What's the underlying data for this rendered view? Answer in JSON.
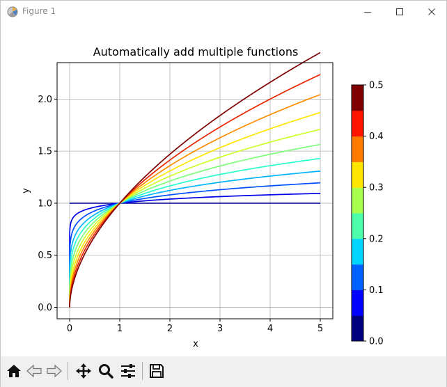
{
  "window": {
    "title": "Figure 1",
    "icon": "matplotlib-figure-icon",
    "controls": [
      "minimize-icon",
      "maximize-icon",
      "close-icon"
    ]
  },
  "toolbar": {
    "tools": [
      {
        "name": "home-button",
        "icon": "home-icon"
      },
      {
        "name": "back-button",
        "icon": "back-arrow-icon"
      },
      {
        "name": "forward-button",
        "icon": "forward-arrow-icon"
      },
      {
        "name": "pan-button",
        "icon": "move-icon"
      },
      {
        "name": "zoom-button",
        "icon": "zoom-icon"
      },
      {
        "name": "configure-subplots-button",
        "icon": "sliders-icon"
      },
      {
        "name": "save-button",
        "icon": "save-icon"
      }
    ]
  },
  "chart_data": {
    "type": "line",
    "title": "Automatically add multiple functions",
    "xlabel": "x",
    "ylabel": "y",
    "xlim": [
      -0.25,
      5.25
    ],
    "ylim": [
      -0.11,
      2.35
    ],
    "xticks": [
      0,
      1,
      2,
      3,
      4,
      5
    ],
    "yticks": [
      0.0,
      0.5,
      1.0,
      1.5,
      2.0
    ],
    "xtick_labels": [
      "0",
      "1",
      "2",
      "3",
      "4",
      "5"
    ],
    "ytick_labels": [
      "0.0",
      "0.5",
      "1.0",
      "1.5",
      "2.0"
    ],
    "grid": true,
    "function": "y = x^p",
    "x_range": [
      0,
      5
    ],
    "series": [
      {
        "p": 0.0,
        "color": "#00008f"
      },
      {
        "p": 0.056,
        "color": "#0000ea"
      },
      {
        "p": 0.111,
        "color": "#0050ff"
      },
      {
        "p": 0.167,
        "color": "#00b4ff"
      },
      {
        "p": 0.222,
        "color": "#29ffce"
      },
      {
        "p": 0.278,
        "color": "#7dff7a"
      },
      {
        "p": 0.333,
        "color": "#ceff29"
      },
      {
        "p": 0.389,
        "color": "#ffe500"
      },
      {
        "p": 0.444,
        "color": "#ff8d00"
      },
      {
        "p": 0.5,
        "color": "#ea2600"
      },
      {
        "p": 0.556,
        "color": "#7f0000"
      }
    ],
    "colorbar": {
      "range": [
        0.0,
        0.5
      ],
      "ticks": [
        0.0,
        0.1,
        0.2,
        0.3,
        0.4,
        0.5
      ],
      "tick_labels": [
        "0.0",
        "0.1",
        "0.2",
        "0.3",
        "0.4",
        "0.5"
      ],
      "colors": [
        "#00007f",
        "#0000ff",
        "#0063ff",
        "#00d5ff",
        "#4dffaa",
        "#a9ff4d",
        "#ffe600",
        "#ff7b00",
        "#ff1400",
        "#7f0000"
      ]
    }
  }
}
